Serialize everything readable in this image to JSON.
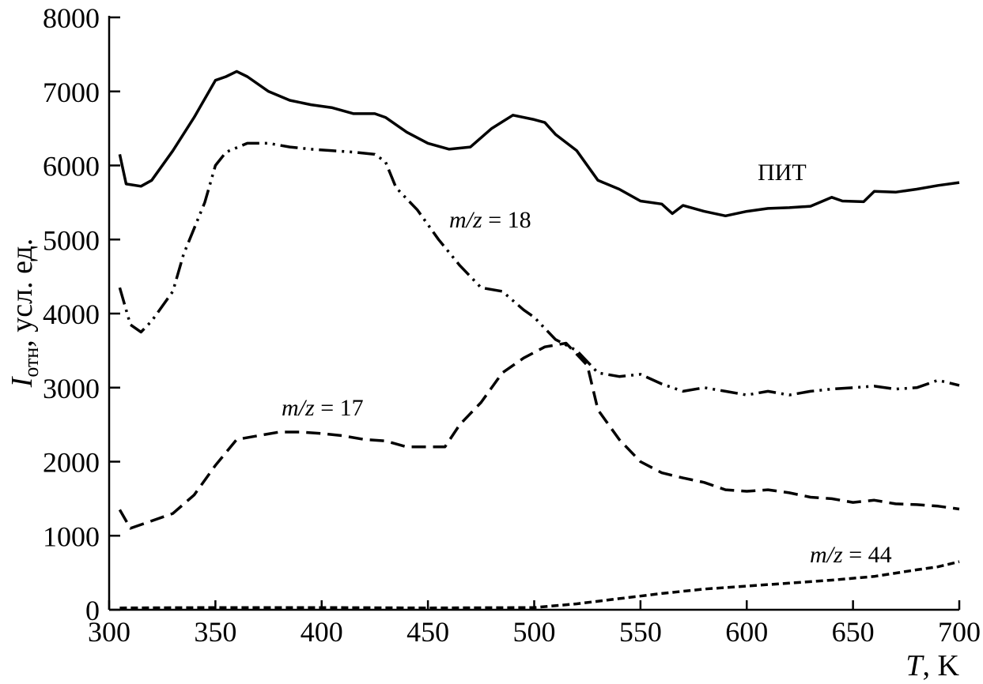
{
  "chart_data": {
    "type": "line",
    "title": "",
    "xlabel": {
      "symbol": "T",
      "unit": ", K"
    },
    "ylabel": {
      "symbol": "I",
      "subscript": "отн",
      "unit": ", усл. ед."
    },
    "xlim": [
      300,
      700
    ],
    "ylim": [
      0,
      8000
    ],
    "x_ticks": [
      300,
      350,
      400,
      450,
      500,
      550,
      600,
      650,
      700
    ],
    "y_ticks": [
      0,
      1000,
      2000,
      3000,
      4000,
      5000,
      6000,
      7000,
      8000
    ],
    "grid": false,
    "annotations": [
      {
        "text": "ПИТ",
        "series": "pit"
      },
      {
        "text_italic": "m/z",
        "text_rest": " = 18",
        "series": "mz18"
      },
      {
        "text_italic": "m/z",
        "text_rest": " = 17",
        "series": "mz17"
      },
      {
        "text_italic": "m/z",
        "text_rest": " = 44",
        "series": "mz44"
      }
    ],
    "series": [
      {
        "id": "pit",
        "style": "solid",
        "points": [
          [
            305,
            6150
          ],
          [
            308,
            5750
          ],
          [
            315,
            5720
          ],
          [
            320,
            5800
          ],
          [
            330,
            6200
          ],
          [
            340,
            6650
          ],
          [
            350,
            7150
          ],
          [
            355,
            7200
          ],
          [
            360,
            7270
          ],
          [
            365,
            7200
          ],
          [
            375,
            7000
          ],
          [
            385,
            6880
          ],
          [
            395,
            6820
          ],
          [
            405,
            6780
          ],
          [
            415,
            6700
          ],
          [
            425,
            6700
          ],
          [
            430,
            6650
          ],
          [
            440,
            6450
          ],
          [
            450,
            6300
          ],
          [
            460,
            6220
          ],
          [
            470,
            6250
          ],
          [
            480,
            6500
          ],
          [
            490,
            6680
          ],
          [
            500,
            6620
          ],
          [
            505,
            6580
          ],
          [
            510,
            6420
          ],
          [
            520,
            6200
          ],
          [
            530,
            5800
          ],
          [
            540,
            5680
          ],
          [
            550,
            5520
          ],
          [
            560,
            5480
          ],
          [
            565,
            5350
          ],
          [
            570,
            5460
          ],
          [
            580,
            5380
          ],
          [
            590,
            5320
          ],
          [
            600,
            5380
          ],
          [
            610,
            5420
          ],
          [
            620,
            5430
          ],
          [
            630,
            5450
          ],
          [
            640,
            5570
          ],
          [
            645,
            5520
          ],
          [
            655,
            5510
          ],
          [
            660,
            5650
          ],
          [
            670,
            5640
          ],
          [
            680,
            5680
          ],
          [
            690,
            5730
          ],
          [
            700,
            5770
          ]
        ]
      },
      {
        "id": "mz18",
        "style": "dashdotdot",
        "points": [
          [
            305,
            4350
          ],
          [
            310,
            3850
          ],
          [
            315,
            3750
          ],
          [
            320,
            3900
          ],
          [
            330,
            4300
          ],
          [
            335,
            4800
          ],
          [
            345,
            5500
          ],
          [
            350,
            6000
          ],
          [
            355,
            6180
          ],
          [
            365,
            6300
          ],
          [
            375,
            6300
          ],
          [
            385,
            6250
          ],
          [
            395,
            6220
          ],
          [
            405,
            6200
          ],
          [
            415,
            6180
          ],
          [
            425,
            6150
          ],
          [
            430,
            6050
          ],
          [
            435,
            5700
          ],
          [
            445,
            5400
          ],
          [
            455,
            5000
          ],
          [
            465,
            4650
          ],
          [
            475,
            4350
          ],
          [
            485,
            4300
          ],
          [
            495,
            4050
          ],
          [
            500,
            3950
          ],
          [
            510,
            3650
          ],
          [
            520,
            3500
          ],
          [
            530,
            3200
          ],
          [
            540,
            3150
          ],
          [
            550,
            3180
          ],
          [
            560,
            3050
          ],
          [
            570,
            2950
          ],
          [
            580,
            3000
          ],
          [
            590,
            2950
          ],
          [
            600,
            2900
          ],
          [
            610,
            2950
          ],
          [
            620,
            2900
          ],
          [
            630,
            2950
          ],
          [
            640,
            2980
          ],
          [
            650,
            3000
          ],
          [
            660,
            3020
          ],
          [
            670,
            2980
          ],
          [
            680,
            3000
          ],
          [
            690,
            3100
          ],
          [
            700,
            3030
          ]
        ]
      },
      {
        "id": "mz17",
        "style": "dashed",
        "points": [
          [
            305,
            1350
          ],
          [
            310,
            1100
          ],
          [
            320,
            1200
          ],
          [
            330,
            1300
          ],
          [
            340,
            1550
          ],
          [
            350,
            1950
          ],
          [
            360,
            2300
          ],
          [
            370,
            2350
          ],
          [
            380,
            2400
          ],
          [
            390,
            2400
          ],
          [
            400,
            2380
          ],
          [
            410,
            2350
          ],
          [
            420,
            2300
          ],
          [
            430,
            2280
          ],
          [
            440,
            2200
          ],
          [
            450,
            2200
          ],
          [
            458,
            2200
          ],
          [
            465,
            2500
          ],
          [
            475,
            2800
          ],
          [
            485,
            3200
          ],
          [
            495,
            3400
          ],
          [
            505,
            3550
          ],
          [
            515,
            3600
          ],
          [
            525,
            3300
          ],
          [
            530,
            2700
          ],
          [
            540,
            2300
          ],
          [
            550,
            2000
          ],
          [
            560,
            1850
          ],
          [
            570,
            1780
          ],
          [
            580,
            1720
          ],
          [
            590,
            1620
          ],
          [
            600,
            1600
          ],
          [
            610,
            1620
          ],
          [
            620,
            1580
          ],
          [
            630,
            1520
          ],
          [
            640,
            1500
          ],
          [
            650,
            1450
          ],
          [
            660,
            1480
          ],
          [
            670,
            1430
          ],
          [
            680,
            1420
          ],
          [
            690,
            1400
          ],
          [
            700,
            1360
          ]
        ]
      },
      {
        "id": "mz44",
        "style": "dashed-fine",
        "points": [
          [
            305,
            25
          ],
          [
            350,
            30
          ],
          [
            400,
            30
          ],
          [
            450,
            25
          ],
          [
            500,
            30
          ],
          [
            520,
            80
          ],
          [
            540,
            150
          ],
          [
            560,
            220
          ],
          [
            580,
            280
          ],
          [
            600,
            320
          ],
          [
            620,
            360
          ],
          [
            640,
            400
          ],
          [
            660,
            450
          ],
          [
            680,
            540
          ],
          [
            690,
            580
          ],
          [
            700,
            650
          ]
        ]
      }
    ]
  }
}
